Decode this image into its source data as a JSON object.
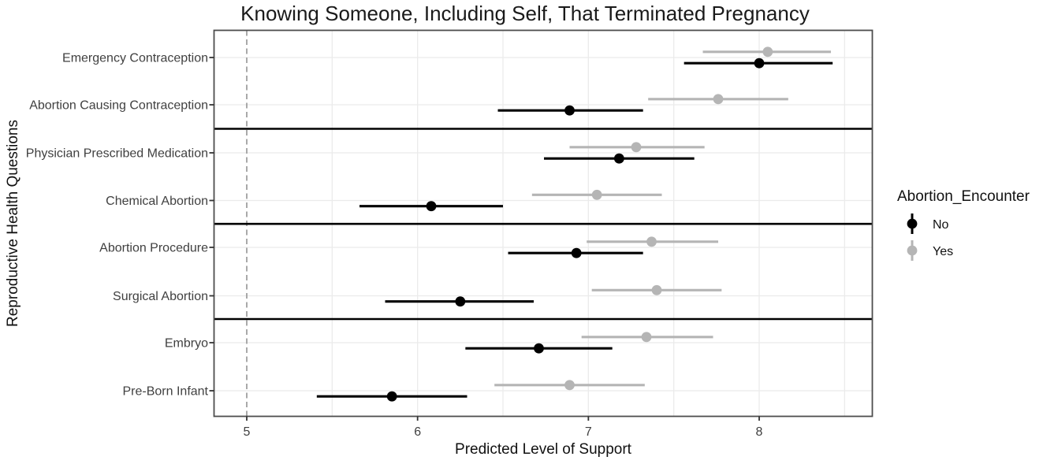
{
  "chart_data": {
    "type": "pointrange",
    "orientation": "horizontal",
    "title": "Knowing Someone, Including Self, That Terminated Pregnancy",
    "xlabel": "Predicted Level of Support",
    "ylabel": "Reproductive Health Questions",
    "x_ticks": [
      5,
      6,
      7,
      8
    ],
    "xlim": [
      4.8,
      8.67
    ],
    "grid": "on",
    "reference_line": {
      "x": 5,
      "style": "dashed",
      "color": "#a9a9a9"
    },
    "categories": [
      "Emergency Contraception",
      "Abortion Causing Contraception",
      "Physician Prescribed Medication",
      "Chemical Abortion",
      "Abortion Procedure",
      "Surgical Abortion",
      "Embryo",
      "Pre-Born Infant"
    ],
    "facet_groups": [
      [
        0,
        1
      ],
      [
        2,
        3
      ],
      [
        4,
        5
      ],
      [
        6,
        7
      ]
    ],
    "series": [
      {
        "name": "No",
        "color": "#000000",
        "estimates": [
          8.0,
          6.89,
          7.18,
          6.08,
          6.93,
          6.25,
          6.71,
          5.85
        ],
        "lower": [
          7.56,
          6.47,
          6.74,
          5.66,
          6.53,
          5.81,
          6.28,
          5.41
        ],
        "upper": [
          8.43,
          7.32,
          7.62,
          6.5,
          7.32,
          6.68,
          7.14,
          6.29
        ]
      },
      {
        "name": "Yes",
        "color": "#b5b5b5",
        "estimates": [
          8.05,
          7.76,
          7.28,
          7.05,
          7.37,
          7.4,
          7.34,
          6.89
        ],
        "lower": [
          7.67,
          7.35,
          6.89,
          6.67,
          6.99,
          7.02,
          6.96,
          6.45
        ],
        "upper": [
          8.42,
          8.17,
          7.68,
          7.43,
          7.76,
          7.78,
          7.73,
          7.33
        ]
      }
    ],
    "legend": {
      "title": "Abortion_Encounter",
      "position": "right",
      "items": [
        {
          "label": "No",
          "color": "#000000"
        },
        {
          "label": "Yes",
          "color": "#b5b5b5"
        }
      ]
    }
  }
}
